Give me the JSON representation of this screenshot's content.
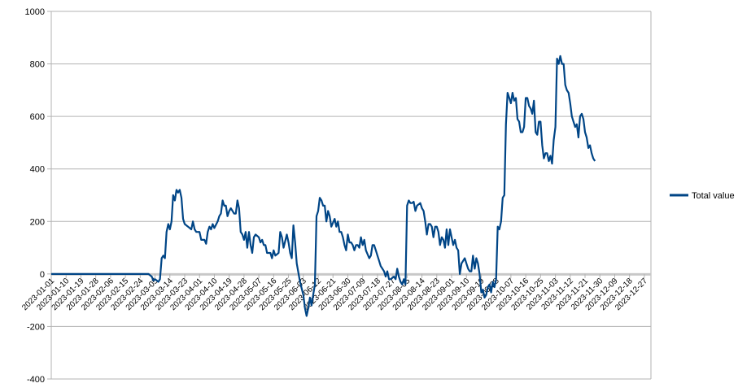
{
  "chart_data": {
    "type": "line",
    "title": "",
    "xlabel": "",
    "ylabel": "",
    "ylim": [
      -400,
      1000
    ],
    "yticks": [
      -400,
      -200,
      0,
      200,
      400,
      600,
      800,
      1000
    ],
    "grid": "horizontal",
    "legend_position": "right",
    "x_start": "2023-01-01",
    "x_end": "2023-12-31",
    "x_tick_labels": [
      "2023-01-01",
      "2023-01-10",
      "2023-01-19",
      "2023-01-28",
      "2023-02-06",
      "2023-02-15",
      "2023-02-24",
      "2023-03-05",
      "2023-03-14",
      "2023-03-23",
      "2023-04-01",
      "2023-04-10",
      "2023-04-19",
      "2023-04-28",
      "2023-05-07",
      "2023-05-16",
      "2023-05-25",
      "2023-06-03",
      "2023-06-12",
      "2023-06-21",
      "2023-06-30",
      "2023-07-09",
      "2023-07-18",
      "2023-07-27",
      "2023-08-05",
      "2023-08-14",
      "2023-08-23",
      "2023-09-01",
      "2023-09-10",
      "2023-09-19",
      "2023-09-28",
      "2023-10-07",
      "2023-10-16",
      "2023-10-25",
      "2023-11-03",
      "2023-11-12",
      "2023-11-21",
      "2023-11-30",
      "2023-12-09",
      "2023-12-18",
      "2023-12-27"
    ],
    "series": [
      {
        "name": "Total value",
        "color": "#004586",
        "points": [
          [
            "2023-01-01",
            0
          ],
          [
            "2023-03-01",
            0
          ],
          [
            "2023-03-03",
            -10
          ],
          [
            "2023-03-04",
            -25
          ],
          [
            "2023-03-05",
            -20
          ],
          [
            "2023-03-07",
            -30
          ],
          [
            "2023-03-08",
            -20
          ],
          [
            "2023-03-09",
            60
          ],
          [
            "2023-03-10",
            70
          ],
          [
            "2023-03-11",
            60
          ],
          [
            "2023-03-12",
            160
          ],
          [
            "2023-03-13",
            190
          ],
          [
            "2023-03-14",
            170
          ],
          [
            "2023-03-15",
            200
          ],
          [
            "2023-03-16",
            300
          ],
          [
            "2023-03-17",
            280
          ],
          [
            "2023-03-18",
            320
          ],
          [
            "2023-03-19",
            310
          ],
          [
            "2023-03-20",
            320
          ],
          [
            "2023-03-21",
            290
          ],
          [
            "2023-03-22",
            210
          ],
          [
            "2023-03-23",
            190
          ],
          [
            "2023-03-25",
            180
          ],
          [
            "2023-03-27",
            170
          ],
          [
            "2023-03-28",
            200
          ],
          [
            "2023-03-29",
            170
          ],
          [
            "2023-03-30",
            160
          ],
          [
            "2023-04-01",
            160
          ],
          [
            "2023-04-02",
            130
          ],
          [
            "2023-04-04",
            130
          ],
          [
            "2023-04-05",
            115
          ],
          [
            "2023-04-06",
            160
          ],
          [
            "2023-04-07",
            180
          ],
          [
            "2023-04-08",
            170
          ],
          [
            "2023-04-09",
            190
          ],
          [
            "2023-04-10",
            175
          ],
          [
            "2023-04-12",
            200
          ],
          [
            "2023-04-13",
            220
          ],
          [
            "2023-04-14",
            230
          ],
          [
            "2023-04-15",
            280
          ],
          [
            "2023-04-16",
            260
          ],
          [
            "2023-04-17",
            260
          ],
          [
            "2023-04-18",
            220
          ],
          [
            "2023-04-19",
            240
          ],
          [
            "2023-04-20",
            250
          ],
          [
            "2023-04-22",
            230
          ],
          [
            "2023-04-23",
            230
          ],
          [
            "2023-04-24",
            280
          ],
          [
            "2023-04-25",
            250
          ],
          [
            "2023-04-26",
            160
          ],
          [
            "2023-04-27",
            150
          ],
          [
            "2023-04-28",
            130
          ],
          [
            "2023-04-29",
            160
          ],
          [
            "2023-04-30",
            100
          ],
          [
            "2023-05-01",
            160
          ],
          [
            "2023-05-02",
            110
          ],
          [
            "2023-05-03",
            80
          ],
          [
            "2023-05-04",
            140
          ],
          [
            "2023-05-05",
            150
          ],
          [
            "2023-05-07",
            140
          ],
          [
            "2023-05-08",
            120
          ],
          [
            "2023-05-09",
            130
          ],
          [
            "2023-05-10",
            110
          ],
          [
            "2023-05-11",
            110
          ],
          [
            "2023-05-12",
            80
          ],
          [
            "2023-05-14",
            80
          ],
          [
            "2023-05-15",
            60
          ],
          [
            "2023-05-16",
            90
          ],
          [
            "2023-05-17",
            70
          ],
          [
            "2023-05-19",
            80
          ],
          [
            "2023-05-20",
            160
          ],
          [
            "2023-05-21",
            140
          ],
          [
            "2023-05-22",
            100
          ],
          [
            "2023-05-24",
            150
          ],
          [
            "2023-05-25",
            120
          ],
          [
            "2023-05-26",
            80
          ],
          [
            "2023-05-27",
            60
          ],
          [
            "2023-05-28",
            185
          ],
          [
            "2023-05-29",
            120
          ],
          [
            "2023-05-30",
            40
          ],
          [
            "2023-06-01",
            -30
          ],
          [
            "2023-06-03",
            -80
          ],
          [
            "2023-06-04",
            -130
          ],
          [
            "2023-06-05",
            -160
          ],
          [
            "2023-06-06",
            -130
          ],
          [
            "2023-06-07",
            -90
          ],
          [
            "2023-06-08",
            -120
          ],
          [
            "2023-06-09",
            -80
          ],
          [
            "2023-06-10",
            -40
          ],
          [
            "2023-06-11",
            220
          ],
          [
            "2023-06-12",
            240
          ],
          [
            "2023-06-13",
            290
          ],
          [
            "2023-06-14",
            280
          ],
          [
            "2023-06-15",
            260
          ],
          [
            "2023-06-16",
            260
          ],
          [
            "2023-06-17",
            200
          ],
          [
            "2023-06-18",
            240
          ],
          [
            "2023-06-19",
            220
          ],
          [
            "2023-06-20",
            180
          ],
          [
            "2023-06-22",
            210
          ],
          [
            "2023-06-23",
            180
          ],
          [
            "2023-06-24",
            200
          ],
          [
            "2023-06-25",
            160
          ],
          [
            "2023-06-26",
            160
          ],
          [
            "2023-06-27",
            140
          ],
          [
            "2023-06-28",
            110
          ],
          [
            "2023-06-29",
            90
          ],
          [
            "2023-06-30",
            150
          ],
          [
            "2023-07-01",
            120
          ],
          [
            "2023-07-02",
            120
          ],
          [
            "2023-07-03",
            110
          ],
          [
            "2023-07-04",
            90
          ],
          [
            "2023-07-05",
            110
          ],
          [
            "2023-07-06",
            110
          ],
          [
            "2023-07-07",
            100
          ],
          [
            "2023-07-08",
            140
          ],
          [
            "2023-07-09",
            110
          ],
          [
            "2023-07-10",
            130
          ],
          [
            "2023-07-11",
            90
          ],
          [
            "2023-07-13",
            60
          ],
          [
            "2023-07-14",
            70
          ],
          [
            "2023-07-15",
            110
          ],
          [
            "2023-07-16",
            110
          ],
          [
            "2023-07-17",
            90
          ],
          [
            "2023-07-18",
            70
          ],
          [
            "2023-07-19",
            50
          ],
          [
            "2023-07-20",
            30
          ],
          [
            "2023-07-21",
            20
          ],
          [
            "2023-07-22",
            10
          ],
          [
            "2023-07-23",
            -10
          ],
          [
            "2023-07-24",
            10
          ],
          [
            "2023-07-25",
            -20
          ],
          [
            "2023-07-26",
            -20
          ],
          [
            "2023-07-28",
            -10
          ],
          [
            "2023-07-29",
            -20
          ],
          [
            "2023-07-30",
            20
          ],
          [
            "2023-07-31",
            -10
          ],
          [
            "2023-08-01",
            -30
          ],
          [
            "2023-08-02",
            -40
          ],
          [
            "2023-08-03",
            -20
          ],
          [
            "2023-08-04",
            -40
          ],
          [
            "2023-08-05",
            260
          ],
          [
            "2023-08-06",
            280
          ],
          [
            "2023-08-07",
            270
          ],
          [
            "2023-08-08",
            270
          ],
          [
            "2023-08-09",
            275
          ],
          [
            "2023-08-10",
            240
          ],
          [
            "2023-08-11",
            260
          ],
          [
            "2023-08-12",
            265
          ],
          [
            "2023-08-13",
            270
          ],
          [
            "2023-08-14",
            250
          ],
          [
            "2023-08-15",
            240
          ],
          [
            "2023-08-16",
            200
          ],
          [
            "2023-08-17",
            150
          ],
          [
            "2023-08-18",
            190
          ],
          [
            "2023-08-19",
            190
          ],
          [
            "2023-08-20",
            180
          ],
          [
            "2023-08-21",
            140
          ],
          [
            "2023-08-22",
            180
          ],
          [
            "2023-08-23",
            180
          ],
          [
            "2023-08-24",
            160
          ],
          [
            "2023-08-25",
            110
          ],
          [
            "2023-08-26",
            140
          ],
          [
            "2023-08-27",
            130
          ],
          [
            "2023-08-28",
            100
          ],
          [
            "2023-08-29",
            170
          ],
          [
            "2023-08-30",
            110
          ],
          [
            "2023-08-31",
            170
          ],
          [
            "2023-09-01",
            140
          ],
          [
            "2023-09-02",
            110
          ],
          [
            "2023-09-03",
            130
          ],
          [
            "2023-09-04",
            100
          ],
          [
            "2023-09-05",
            90
          ],
          [
            "2023-09-06",
            0
          ],
          [
            "2023-09-07",
            40
          ],
          [
            "2023-09-08",
            50
          ],
          [
            "2023-09-09",
            60
          ],
          [
            "2023-09-10",
            40
          ],
          [
            "2023-09-11",
            20
          ],
          [
            "2023-09-12",
            10
          ],
          [
            "2023-09-13",
            10
          ],
          [
            "2023-09-14",
            70
          ],
          [
            "2023-09-15",
            20
          ],
          [
            "2023-09-16",
            60
          ],
          [
            "2023-09-17",
            40
          ],
          [
            "2023-09-18",
            0
          ],
          [
            "2023-09-19",
            -70
          ],
          [
            "2023-09-20",
            -60
          ],
          [
            "2023-09-21",
            -90
          ],
          [
            "2023-09-22",
            -80
          ],
          [
            "2023-09-23",
            -50
          ],
          [
            "2023-09-24",
            -40
          ],
          [
            "2023-09-25",
            -70
          ],
          [
            "2023-09-26",
            -30
          ],
          [
            "2023-09-27",
            -50
          ],
          [
            "2023-09-28",
            -20
          ],
          [
            "2023-09-29",
            180
          ],
          [
            "2023-09-30",
            170
          ],
          [
            "2023-10-01",
            200
          ],
          [
            "2023-10-02",
            290
          ],
          [
            "2023-10-03",
            300
          ],
          [
            "2023-10-04",
            570
          ],
          [
            "2023-10-05",
            690
          ],
          [
            "2023-10-06",
            670
          ],
          [
            "2023-10-07",
            650
          ],
          [
            "2023-10-08",
            690
          ],
          [
            "2023-10-09",
            660
          ],
          [
            "2023-10-10",
            670
          ],
          [
            "2023-10-11",
            590
          ],
          [
            "2023-10-12",
            580
          ],
          [
            "2023-10-13",
            540
          ],
          [
            "2023-10-14",
            540
          ],
          [
            "2023-10-15",
            560
          ],
          [
            "2023-10-16",
            670
          ],
          [
            "2023-10-17",
            670
          ],
          [
            "2023-10-18",
            640
          ],
          [
            "2023-10-19",
            630
          ],
          [
            "2023-10-20",
            610
          ],
          [
            "2023-10-21",
            660
          ],
          [
            "2023-10-22",
            540
          ],
          [
            "2023-10-23",
            530
          ],
          [
            "2023-10-24",
            580
          ],
          [
            "2023-10-25",
            580
          ],
          [
            "2023-10-26",
            490
          ],
          [
            "2023-10-27",
            440
          ],
          [
            "2023-10-28",
            460
          ],
          [
            "2023-10-29",
            460
          ],
          [
            "2023-10-30",
            430
          ],
          [
            "2023-10-31",
            450
          ],
          [
            "2023-11-01",
            420
          ],
          [
            "2023-11-02",
            510
          ],
          [
            "2023-11-03",
            560
          ],
          [
            "2023-11-04",
            820
          ],
          [
            "2023-11-05",
            800
          ],
          [
            "2023-11-06",
            830
          ],
          [
            "2023-11-07",
            800
          ],
          [
            "2023-11-08",
            800
          ],
          [
            "2023-11-09",
            720
          ],
          [
            "2023-11-10",
            700
          ],
          [
            "2023-11-11",
            690
          ],
          [
            "2023-11-12",
            650
          ],
          [
            "2023-11-13",
            600
          ],
          [
            "2023-11-14",
            580
          ],
          [
            "2023-11-15",
            560
          ],
          [
            "2023-11-16",
            570
          ],
          [
            "2023-11-17",
            520
          ],
          [
            "2023-11-18",
            600
          ],
          [
            "2023-11-19",
            610
          ],
          [
            "2023-11-20",
            590
          ],
          [
            "2023-11-21",
            540
          ],
          [
            "2023-11-22",
            520
          ],
          [
            "2023-11-23",
            480
          ],
          [
            "2023-11-24",
            490
          ],
          [
            "2023-11-25",
            460
          ],
          [
            "2023-11-26",
            440
          ],
          [
            "2023-11-27",
            430
          ]
        ]
      }
    ]
  }
}
